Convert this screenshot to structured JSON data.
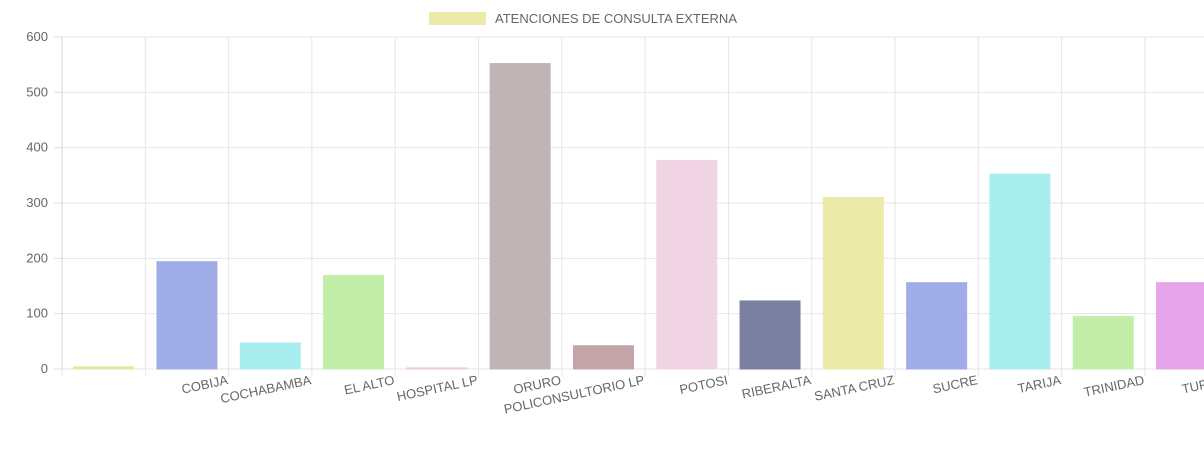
{
  "chart_data": {
    "type": "bar",
    "categories": [
      "",
      "COBIJA",
      "COCHABAMBA",
      "EL ALTO",
      "HOSPITAL LP",
      "ORURO",
      "POLICONSULTORIO LP",
      "POTOSI",
      "RIBERALTA",
      "SANTA CRUZ",
      "SUCRE",
      "TARIJA",
      "TRINIDAD",
      "TUPIZA"
    ],
    "series": [
      {
        "name": "ATENCIONES DE CONSULTA EXTERNA",
        "values": [
          4,
          194,
          47,
          169,
          2,
          552,
          42,
          377,
          123,
          310,
          156,
          352,
          95,
          156
        ],
        "colors": [
          "#e8e4a8",
          "#a0ace8",
          "#a8eeee",
          "#c2eeaa",
          "#f0c8d8",
          "#c0b4b4",
          "#c4a4a8",
          "#f0d4e4",
          "#7a80a0",
          "#eceaa8",
          "#a0ace8",
          "#a8eeee",
          "#c2eeaa",
          "#e8a4ea"
        ]
      }
    ],
    "legend": {
      "label": "ATENCIONES DE CONSULTA EXTERNA",
      "color": "#eceaa8",
      "position": "top"
    },
    "ylim": [
      0,
      600
    ],
    "yticks": [
      0,
      100,
      200,
      300,
      400,
      500,
      600
    ],
    "ytick_labels": [
      "0",
      "100",
      "200",
      "300",
      "400",
      "500",
      "600"
    ],
    "grid": true,
    "title": "",
    "xlabel": "",
    "ylabel": ""
  }
}
